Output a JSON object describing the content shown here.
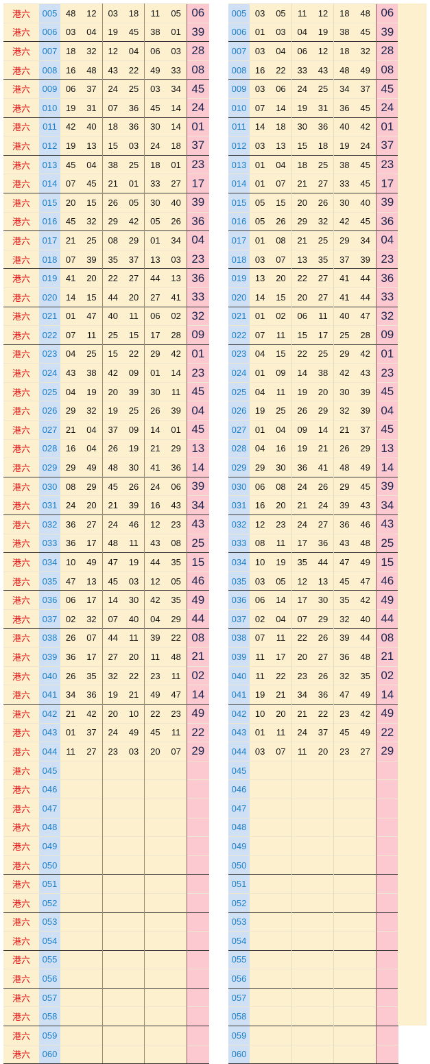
{
  "row_label": "港六",
  "colors": {
    "label": "#e01010",
    "issue": "#1a7fc8",
    "issue_bg": "#cfe0f4",
    "special_bg": "#fbc9cf",
    "cell_bg": "#fdf0cf"
  },
  "rows": [
    {
      "issue": "005",
      "nums": [
        "48",
        "12",
        "03",
        "18",
        "11",
        "05"
      ],
      "sorted": [
        "03",
        "05",
        "11",
        "12",
        "18",
        "48"
      ],
      "special": "06"
    },
    {
      "issue": "006",
      "nums": [
        "03",
        "04",
        "19",
        "45",
        "38",
        "01"
      ],
      "sorted": [
        "01",
        "03",
        "04",
        "19",
        "38",
        "45"
      ],
      "special": "39"
    },
    {
      "issue": "007",
      "nums": [
        "18",
        "32",
        "12",
        "04",
        "06",
        "03"
      ],
      "sorted": [
        "03",
        "04",
        "06",
        "12",
        "18",
        "32"
      ],
      "special": "28"
    },
    {
      "issue": "008",
      "nums": [
        "16",
        "48",
        "43",
        "22",
        "49",
        "33"
      ],
      "sorted": [
        "16",
        "22",
        "33",
        "43",
        "48",
        "49"
      ],
      "special": "08"
    },
    {
      "issue": "009",
      "nums": [
        "06",
        "37",
        "24",
        "25",
        "03",
        "34"
      ],
      "sorted": [
        "03",
        "06",
        "24",
        "25",
        "34",
        "37"
      ],
      "special": "45"
    },
    {
      "issue": "010",
      "nums": [
        "19",
        "31",
        "07",
        "36",
        "45",
        "14"
      ],
      "sorted": [
        "07",
        "14",
        "19",
        "31",
        "36",
        "45"
      ],
      "special": "24"
    },
    {
      "issue": "011",
      "nums": [
        "42",
        "40",
        "18",
        "36",
        "30",
        "14"
      ],
      "sorted": [
        "14",
        "18",
        "30",
        "36",
        "40",
        "42"
      ],
      "special": "01"
    },
    {
      "issue": "012",
      "nums": [
        "19",
        "13",
        "15",
        "03",
        "24",
        "18"
      ],
      "sorted": [
        "03",
        "13",
        "15",
        "18",
        "19",
        "24"
      ],
      "special": "37"
    },
    {
      "issue": "013",
      "nums": [
        "45",
        "04",
        "38",
        "25",
        "18",
        "01"
      ],
      "sorted": [
        "01",
        "04",
        "18",
        "25",
        "38",
        "45"
      ],
      "special": "23"
    },
    {
      "issue": "014",
      "nums": [
        "07",
        "45",
        "21",
        "01",
        "33",
        "27"
      ],
      "sorted": [
        "01",
        "07",
        "21",
        "27",
        "33",
        "45"
      ],
      "special": "17"
    },
    {
      "issue": "015",
      "nums": [
        "20",
        "15",
        "26",
        "05",
        "30",
        "40"
      ],
      "sorted": [
        "05",
        "15",
        "20",
        "26",
        "30",
        "40"
      ],
      "special": "39"
    },
    {
      "issue": "016",
      "nums": [
        "45",
        "32",
        "29",
        "42",
        "05",
        "26"
      ],
      "sorted": [
        "05",
        "26",
        "29",
        "32",
        "42",
        "45"
      ],
      "special": "36"
    },
    {
      "issue": "017",
      "nums": [
        "21",
        "25",
        "08",
        "29",
        "01",
        "34"
      ],
      "sorted": [
        "01",
        "08",
        "21",
        "25",
        "29",
        "34"
      ],
      "special": "04"
    },
    {
      "issue": "018",
      "nums": [
        "07",
        "39",
        "35",
        "37",
        "13",
        "03"
      ],
      "sorted": [
        "03",
        "07",
        "13",
        "35",
        "37",
        "39"
      ],
      "special": "23"
    },
    {
      "issue": "019",
      "nums": [
        "41",
        "20",
        "22",
        "27",
        "44",
        "13"
      ],
      "sorted": [
        "13",
        "20",
        "22",
        "27",
        "41",
        "44"
      ],
      "special": "36"
    },
    {
      "issue": "020",
      "nums": [
        "14",
        "15",
        "44",
        "20",
        "27",
        "41"
      ],
      "sorted": [
        "14",
        "15",
        "20",
        "27",
        "41",
        "44"
      ],
      "special": "33"
    },
    {
      "issue": "021",
      "nums": [
        "01",
        "47",
        "40",
        "11",
        "06",
        "02"
      ],
      "sorted": [
        "01",
        "02",
        "06",
        "11",
        "40",
        "47"
      ],
      "special": "32"
    },
    {
      "issue": "022",
      "nums": [
        "07",
        "11",
        "25",
        "15",
        "17",
        "28"
      ],
      "sorted": [
        "07",
        "11",
        "15",
        "17",
        "25",
        "28"
      ],
      "special": "09"
    },
    {
      "issue": "023",
      "nums": [
        "04",
        "25",
        "15",
        "22",
        "29",
        "42"
      ],
      "sorted": [
        "04",
        "15",
        "22",
        "25",
        "29",
        "42"
      ],
      "special": "01"
    },
    {
      "issue": "024",
      "nums": [
        "43",
        "38",
        "42",
        "09",
        "01",
        "14"
      ],
      "sorted": [
        "01",
        "09",
        "14",
        "38",
        "42",
        "43"
      ],
      "special": "23"
    },
    {
      "issue": "025",
      "nums": [
        "04",
        "19",
        "20",
        "39",
        "30",
        "11"
      ],
      "sorted": [
        "04",
        "11",
        "19",
        "20",
        "30",
        "39"
      ],
      "special": "45"
    },
    {
      "issue": "026",
      "nums": [
        "29",
        "32",
        "19",
        "25",
        "26",
        "39"
      ],
      "sorted": [
        "19",
        "25",
        "26",
        "29",
        "32",
        "39"
      ],
      "special": "04"
    },
    {
      "issue": "027",
      "nums": [
        "21",
        "04",
        "37",
        "09",
        "14",
        "01"
      ],
      "sorted": [
        "01",
        "04",
        "09",
        "14",
        "21",
        "37"
      ],
      "special": "45"
    },
    {
      "issue": "028",
      "nums": [
        "16",
        "04",
        "26",
        "19",
        "21",
        "29"
      ],
      "sorted": [
        "04",
        "16",
        "19",
        "21",
        "26",
        "29"
      ],
      "special": "13"
    },
    {
      "issue": "029",
      "nums": [
        "29",
        "49",
        "48",
        "30",
        "41",
        "36"
      ],
      "sorted": [
        "29",
        "30",
        "36",
        "41",
        "48",
        "49"
      ],
      "special": "14"
    },
    {
      "issue": "030",
      "nums": [
        "08",
        "29",
        "45",
        "26",
        "24",
        "06"
      ],
      "sorted": [
        "06",
        "08",
        "24",
        "26",
        "29",
        "45"
      ],
      "special": "39"
    },
    {
      "issue": "031",
      "nums": [
        "24",
        "20",
        "21",
        "39",
        "16",
        "43"
      ],
      "sorted": [
        "16",
        "20",
        "21",
        "24",
        "39",
        "43"
      ],
      "special": "34"
    },
    {
      "issue": "032",
      "nums": [
        "36",
        "27",
        "24",
        "46",
        "12",
        "23"
      ],
      "sorted": [
        "12",
        "23",
        "24",
        "27",
        "36",
        "46"
      ],
      "special": "43"
    },
    {
      "issue": "033",
      "nums": [
        "36",
        "17",
        "48",
        "11",
        "43",
        "08"
      ],
      "sorted": [
        "08",
        "11",
        "17",
        "36",
        "43",
        "48"
      ],
      "special": "25"
    },
    {
      "issue": "034",
      "nums": [
        "10",
        "49",
        "47",
        "19",
        "44",
        "35"
      ],
      "sorted": [
        "10",
        "19",
        "35",
        "44",
        "47",
        "49"
      ],
      "special": "15"
    },
    {
      "issue": "035",
      "nums": [
        "47",
        "13",
        "45",
        "03",
        "12",
        "05"
      ],
      "sorted": [
        "03",
        "05",
        "12",
        "13",
        "45",
        "47"
      ],
      "special": "46"
    },
    {
      "issue": "036",
      "nums": [
        "06",
        "17",
        "14",
        "30",
        "42",
        "35"
      ],
      "sorted": [
        "06",
        "14",
        "17",
        "30",
        "35",
        "42"
      ],
      "special": "49"
    },
    {
      "issue": "037",
      "nums": [
        "02",
        "32",
        "07",
        "40",
        "04",
        "29"
      ],
      "sorted": [
        "02",
        "04",
        "07",
        "29",
        "32",
        "40"
      ],
      "special": "44"
    },
    {
      "issue": "038",
      "nums": [
        "26",
        "07",
        "44",
        "11",
        "39",
        "22"
      ],
      "sorted": [
        "07",
        "11",
        "22",
        "26",
        "39",
        "44"
      ],
      "special": "08"
    },
    {
      "issue": "039",
      "nums": [
        "36",
        "17",
        "27",
        "20",
        "11",
        "48"
      ],
      "sorted": [
        "11",
        "17",
        "20",
        "27",
        "36",
        "48"
      ],
      "special": "21"
    },
    {
      "issue": "040",
      "nums": [
        "26",
        "35",
        "32",
        "22",
        "23",
        "11"
      ],
      "sorted": [
        "11",
        "22",
        "23",
        "26",
        "32",
        "35"
      ],
      "special": "02"
    },
    {
      "issue": "041",
      "nums": [
        "34",
        "36",
        "19",
        "21",
        "49",
        "47"
      ],
      "sorted": [
        "19",
        "21",
        "34",
        "36",
        "47",
        "49"
      ],
      "special": "14"
    },
    {
      "issue": "042",
      "nums": [
        "21",
        "42",
        "20",
        "10",
        "22",
        "23"
      ],
      "sorted": [
        "10",
        "20",
        "21",
        "22",
        "23",
        "42"
      ],
      "special": "49"
    },
    {
      "issue": "043",
      "nums": [
        "01",
        "37",
        "24",
        "49",
        "45",
        "11"
      ],
      "sorted": [
        "01",
        "11",
        "24",
        "37",
        "45",
        "49"
      ],
      "special": "22"
    },
    {
      "issue": "044",
      "nums": [
        "11",
        "27",
        "23",
        "03",
        "20",
        "07"
      ],
      "sorted": [
        "03",
        "07",
        "11",
        "20",
        "23",
        "27"
      ],
      "special": "29"
    },
    {
      "issue": "045"
    },
    {
      "issue": "046"
    },
    {
      "issue": "047"
    },
    {
      "issue": "048"
    },
    {
      "issue": "049"
    },
    {
      "issue": "050"
    },
    {
      "issue": "051"
    },
    {
      "issue": "052"
    },
    {
      "issue": "053"
    },
    {
      "issue": "054"
    },
    {
      "issue": "055"
    },
    {
      "issue": "056"
    },
    {
      "issue": "057"
    },
    {
      "issue": "058"
    },
    {
      "issue": "059"
    },
    {
      "issue": "060"
    }
  ]
}
